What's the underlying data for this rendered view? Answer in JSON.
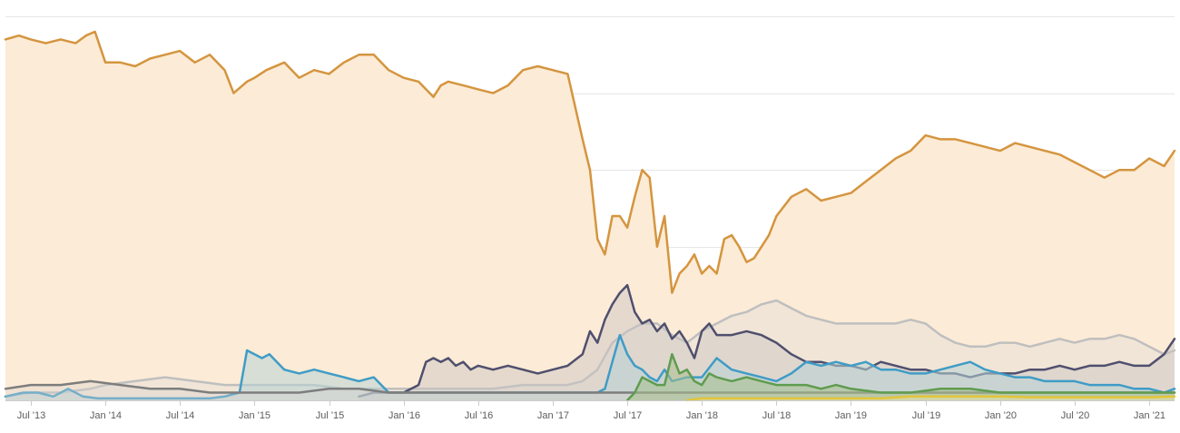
{
  "chart_data": {
    "type": "area",
    "title": "",
    "xlabel": "",
    "ylabel": "",
    "grid": true,
    "legend": "none",
    "xlim": [
      2013.33,
      2021.17
    ],
    "ylim": [
      0,
      100
    ],
    "x_ticks": [
      {
        "value": 2013.5,
        "label": "Jul '13"
      },
      {
        "value": 2014.0,
        "label": "Jan '14"
      },
      {
        "value": 2014.5,
        "label": "Jul '14"
      },
      {
        "value": 2015.0,
        "label": "Jan '15"
      },
      {
        "value": 2015.5,
        "label": "Jul '15"
      },
      {
        "value": 2016.0,
        "label": "Jan '16"
      },
      {
        "value": 2016.5,
        "label": "Jul '16"
      },
      {
        "value": 2017.0,
        "label": "Jan '17"
      },
      {
        "value": 2017.5,
        "label": "Jul '17"
      },
      {
        "value": 2018.0,
        "label": "Jan '18"
      },
      {
        "value": 2018.5,
        "label": "Jul '18"
      },
      {
        "value": 2019.0,
        "label": "Jan '19"
      },
      {
        "value": 2019.5,
        "label": "Jul '19"
      },
      {
        "value": 2020.0,
        "label": "Jan '20"
      },
      {
        "value": 2020.5,
        "label": "Jul '20"
      },
      {
        "value": 2021.0,
        "label": "Jan '21"
      }
    ],
    "y_gridlines": [
      0,
      20,
      40,
      60,
      80,
      100
    ],
    "series": [
      {
        "color": "#d4953f",
        "fill": "#fcebd6",
        "fill_opacity": 1,
        "x": [
          2013.33,
          2013.42,
          2013.5,
          2013.6,
          2013.7,
          2013.8,
          2013.87,
          2013.93,
          2014.0,
          2014.1,
          2014.2,
          2014.3,
          2014.4,
          2014.5,
          2014.6,
          2014.7,
          2014.8,
          2014.86,
          2014.95,
          2015.0,
          2015.08,
          2015.2,
          2015.3,
          2015.4,
          2015.5,
          2015.6,
          2015.7,
          2015.8,
          2015.9,
          2016.0,
          2016.1,
          2016.2,
          2016.25,
          2016.3,
          2016.4,
          2016.5,
          2016.6,
          2016.7,
          2016.8,
          2016.9,
          2017.0,
          2017.1,
          2017.2,
          2017.25,
          2017.3,
          2017.35,
          2017.4,
          2017.45,
          2017.5,
          2017.55,
          2017.6,
          2017.65,
          2017.7,
          2017.75,
          2017.8,
          2017.85,
          2017.9,
          2017.95,
          2018.0,
          2018.05,
          2018.1,
          2018.15,
          2018.2,
          2018.25,
          2018.3,
          2018.35,
          2018.4,
          2018.45,
          2018.5,
          2018.6,
          2018.7,
          2018.8,
          2018.9,
          2019.0,
          2019.1,
          2019.2,
          2019.3,
          2019.4,
          2019.5,
          2019.6,
          2019.7,
          2019.8,
          2019.9,
          2020.0,
          2020.1,
          2020.2,
          2020.3,
          2020.4,
          2020.5,
          2020.6,
          2020.7,
          2020.8,
          2020.9,
          2021.0,
          2021.1,
          2021.17
        ],
        "y": [
          94,
          95,
          94,
          93,
          94,
          93,
          95,
          96,
          88,
          88,
          87,
          89,
          90,
          91,
          88,
          90,
          86,
          80,
          83,
          84,
          86,
          88,
          84,
          86,
          85,
          88,
          90,
          90,
          86,
          84,
          83,
          79,
          82,
          83,
          82,
          81,
          80,
          82,
          86,
          87,
          86,
          85,
          68,
          60,
          42,
          38,
          48,
          48,
          45,
          53,
          60,
          58,
          40,
          48,
          28,
          33,
          35,
          38,
          33,
          35,
          33,
          42,
          43,
          40,
          36,
          37,
          40,
          43,
          48,
          53,
          55,
          52,
          53,
          54,
          57,
          60,
          63,
          65,
          69,
          68,
          68,
          67,
          66,
          65,
          67,
          66,
          65,
          64,
          62,
          60,
          58,
          60,
          60,
          63,
          61,
          65
        ]
      },
      {
        "color": "#bfbfbf",
        "fill": "#e6e0d8",
        "fill_opacity": 0.5,
        "x": [
          2013.33,
          2013.5,
          2013.7,
          2013.9,
          2014.0,
          2014.2,
          2014.4,
          2014.6,
          2014.8,
          2015.0,
          2015.2,
          2015.4,
          2015.6,
          2015.8,
          2016.0,
          2016.2,
          2016.4,
          2016.6,
          2016.8,
          2017.0,
          2017.1,
          2017.2,
          2017.3,
          2017.4,
          2017.5,
          2017.6,
          2017.7,
          2017.8,
          2017.9,
          2018.0,
          2018.1,
          2018.2,
          2018.3,
          2018.4,
          2018.5,
          2018.6,
          2018.7,
          2018.8,
          2018.9,
          2019.0,
          2019.1,
          2019.2,
          2019.3,
          2019.4,
          2019.5,
          2019.6,
          2019.7,
          2019.8,
          2019.9,
          2020.0,
          2020.1,
          2020.2,
          2020.3,
          2020.4,
          2020.5,
          2020.6,
          2020.7,
          2020.8,
          2020.9,
          2021.0,
          2021.1,
          2021.17
        ],
        "y": [
          1,
          2,
          2,
          3,
          4,
          5,
          6,
          5,
          4,
          4,
          4,
          4,
          3,
          3,
          3,
          3,
          3,
          3,
          4,
          4,
          4,
          5,
          8,
          15,
          18,
          20,
          20,
          17,
          15,
          18,
          20,
          22,
          23,
          25,
          26,
          24,
          22,
          21,
          20,
          20,
          20,
          20,
          20,
          21,
          20,
          17,
          15,
          14,
          14,
          15,
          15,
          14,
          15,
          16,
          15,
          16,
          16,
          17,
          16,
          14,
          12,
          13
        ]
      },
      {
        "color": "#4f4f6e",
        "fill": "#c9c3c3",
        "fill_opacity": 0.45,
        "x": [
          2015.7,
          2015.8,
          2015.9,
          2016.0,
          2016.1,
          2016.15,
          2016.2,
          2016.25,
          2016.3,
          2016.35,
          2016.4,
          2016.45,
          2016.5,
          2016.6,
          2016.7,
          2016.8,
          2016.9,
          2017.0,
          2017.1,
          2017.2,
          2017.25,
          2017.3,
          2017.35,
          2017.4,
          2017.45,
          2017.5,
          2017.55,
          2017.6,
          2017.65,
          2017.7,
          2017.75,
          2017.8,
          2017.85,
          2017.9,
          2017.95,
          2018.0,
          2018.05,
          2018.1,
          2018.2,
          2018.3,
          2018.4,
          2018.5,
          2018.6,
          2018.7,
          2018.8,
          2018.9,
          2019.0,
          2019.1,
          2019.2,
          2019.3,
          2019.4,
          2019.5,
          2019.6,
          2019.7,
          2019.8,
          2019.9,
          2020.0,
          2020.1,
          2020.2,
          2020.3,
          2020.4,
          2020.5,
          2020.6,
          2020.7,
          2020.8,
          2020.9,
          2021.0,
          2021.1,
          2021.17
        ],
        "y": [
          1,
          2,
          2,
          2,
          4,
          10,
          11,
          10,
          11,
          9,
          10,
          8,
          9,
          8,
          9,
          8,
          7,
          8,
          9,
          12,
          18,
          15,
          21,
          25,
          28,
          30,
          23,
          20,
          21,
          18,
          20,
          16,
          18,
          15,
          11,
          18,
          20,
          17,
          17,
          18,
          17,
          15,
          12,
          10,
          10,
          9,
          9,
          8,
          10,
          9,
          8,
          8,
          7,
          7,
          6,
          7,
          7,
          7,
          8,
          8,
          9,
          8,
          9,
          9,
          10,
          9,
          9,
          12,
          16
        ]
      },
      {
        "color": "#3f9cc6",
        "fill": "#b7d3d6",
        "fill_opacity": 0.55,
        "x": [
          2013.33,
          2013.45,
          2013.55,
          2013.65,
          2013.75,
          2013.85,
          2013.95,
          2014.1,
          2014.3,
          2014.5,
          2014.7,
          2014.8,
          2014.9,
          2014.95,
          2015.0,
          2015.05,
          2015.1,
          2015.2,
          2015.3,
          2015.4,
          2015.5,
          2015.6,
          2015.7,
          2015.8,
          2015.9,
          2016.0,
          2016.2,
          2016.4,
          2016.6,
          2016.8,
          2017.0,
          2017.2,
          2017.3,
          2017.35,
          2017.4,
          2017.45,
          2017.5,
          2017.55,
          2017.6,
          2017.65,
          2017.7,
          2017.75,
          2017.8,
          2017.9,
          2018.0,
          2018.1,
          2018.2,
          2018.3,
          2018.4,
          2018.5,
          2018.6,
          2018.7,
          2018.8,
          2018.9,
          2019.0,
          2019.1,
          2019.2,
          2019.3,
          2019.4,
          2019.5,
          2019.6,
          2019.7,
          2019.8,
          2019.9,
          2020.0,
          2020.1,
          2020.2,
          2020.3,
          2020.4,
          2020.5,
          2020.6,
          2020.7,
          2020.8,
          2020.9,
          2021.0,
          2021.1,
          2021.17
        ],
        "y": [
          1,
          2,
          2,
          1,
          3,
          1,
          0.5,
          0.5,
          0.5,
          0.5,
          0.5,
          1,
          2,
          13,
          12,
          11,
          12,
          8,
          7,
          8,
          7,
          6,
          5,
          6,
          2,
          2,
          2,
          2,
          2,
          2,
          2,
          2,
          2,
          3,
          10,
          17,
          12,
          9,
          8,
          6,
          5,
          8,
          5,
          6,
          6,
          11,
          8,
          7,
          6,
          5,
          7,
          10,
          9,
          10,
          9,
          10,
          8,
          8,
          7,
          7,
          8,
          9,
          10,
          8,
          7,
          6,
          6,
          5,
          5,
          5,
          4,
          4,
          4,
          3,
          3,
          2,
          3
        ]
      },
      {
        "color": "#7d7d7d",
        "fill": "#d6d2cd",
        "fill_opacity": 0.35,
        "x": [
          2013.33,
          2013.5,
          2013.7,
          2013.9,
          2014.1,
          2014.3,
          2014.5,
          2014.7,
          2014.9,
          2015.1,
          2015.3,
          2015.5,
          2015.7,
          2015.9,
          2016.1,
          2016.3,
          2016.5,
          2016.7,
          2016.9,
          2017.1,
          2017.3,
          2017.5,
          2017.7,
          2017.9,
          2018.1,
          2018.3,
          2018.5,
          2018.7,
          2018.9,
          2019.1,
          2019.3,
          2019.5,
          2019.7,
          2019.9,
          2020.1,
          2020.3,
          2020.5,
          2020.7,
          2020.9,
          2021.17
        ],
        "y": [
          3,
          4,
          4,
          5,
          4,
          3,
          3,
          2,
          2,
          2,
          2,
          3,
          3,
          2,
          2,
          2,
          2,
          2,
          2,
          2,
          2,
          2,
          2,
          2,
          2,
          2,
          2,
          2,
          2,
          2,
          2,
          2,
          2,
          2,
          2,
          2,
          2,
          2,
          2,
          2
        ]
      },
      {
        "color": "#5f9c4f",
        "fill": "#a7c08d",
        "fill_opacity": 0.55,
        "x": [
          2017.5,
          2017.55,
          2017.6,
          2017.65,
          2017.7,
          2017.75,
          2017.8,
          2017.85,
          2017.9,
          2017.95,
          2018.0,
          2018.05,
          2018.1,
          2018.2,
          2018.3,
          2018.4,
          2018.5,
          2018.6,
          2018.7,
          2018.8,
          2018.9,
          2019.0,
          2019.2,
          2019.4,
          2019.6,
          2019.8,
          2020.0,
          2020.2,
          2020.4,
          2020.6,
          2020.8,
          2021.0,
          2021.17
        ],
        "y": [
          0,
          2,
          6,
          5,
          4,
          4,
          12,
          7,
          8,
          5,
          4,
          7,
          6,
          5,
          6,
          5,
          4,
          4,
          4,
          3,
          4,
          3,
          2,
          2,
          3,
          3,
          2,
          2,
          2,
          2,
          2,
          2,
          2
        ]
      },
      {
        "color": "#e2c53a",
        "fill": "#f1e6a9",
        "fill_opacity": 0.45,
        "x": [
          2017.9,
          2018.0,
          2018.2,
          2018.4,
          2018.6,
          2018.8,
          2019.0,
          2019.2,
          2019.4,
          2019.6,
          2019.8,
          2020.0,
          2020.2,
          2020.4,
          2020.6,
          2020.8,
          2021.0,
          2021.17
        ],
        "y": [
          0,
          0.5,
          0.5,
          0.5,
          0.5,
          0.5,
          0.5,
          0.5,
          1,
          1,
          1,
          1,
          0.8,
          0.8,
          0.8,
          0.8,
          0.8,
          1
        ]
      }
    ]
  }
}
